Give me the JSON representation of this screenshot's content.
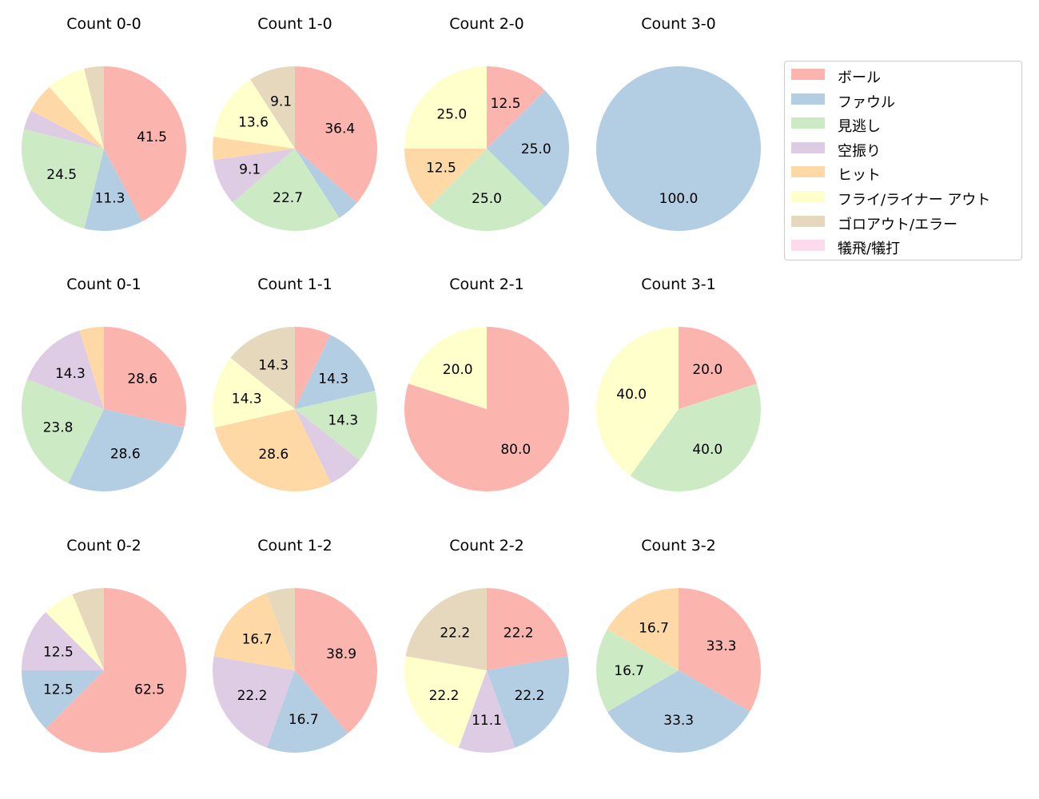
{
  "chart_data": {
    "type": "pie",
    "layout": "small-multiples",
    "colors": [
      "#fbb4ae",
      "#b3cde3",
      "#ccebc5",
      "#decbe4",
      "#fed9a6",
      "#ffffcc",
      "#e5d8bd",
      "#fddaec"
    ],
    "legend": [
      "ボール",
      "ファウル",
      "見逃し",
      "空振り",
      "ヒット",
      "フライ/ライナー アウト",
      "ゴロアウト/エラー",
      "犠飛/犠打"
    ],
    "charts": [
      {
        "title": "Count 0-0",
        "values": [
          41.5,
          11.3,
          24.5,
          3.8,
          5.7,
          7.5,
          3.8,
          0
        ],
        "labels": [
          "41.5",
          "11.3",
          "24.5",
          "",
          "",
          "",
          "",
          ""
        ]
      },
      {
        "title": "Count 1-0",
        "values": [
          36.4,
          4.5,
          22.7,
          9.1,
          4.5,
          13.6,
          9.1,
          0
        ],
        "labels": [
          "36.4",
          "",
          "22.7",
          "9.1",
          "",
          "13.6",
          "9.1",
          ""
        ]
      },
      {
        "title": "Count 2-0",
        "values": [
          12.5,
          25.0,
          25.0,
          0,
          12.5,
          25.0,
          0,
          0
        ],
        "labels": [
          "12.5",
          "25.0",
          "25.0",
          "",
          "12.5",
          "25.0",
          "",
          ""
        ]
      },
      {
        "title": "Count 3-0",
        "values": [
          0,
          100.0,
          0,
          0,
          0,
          0,
          0,
          0
        ],
        "labels": [
          "",
          "100.0",
          "",
          "",
          "",
          "",
          "",
          ""
        ]
      },
      {
        "title": "Count 0-1",
        "values": [
          28.6,
          28.6,
          23.8,
          14.3,
          4.8,
          0,
          0,
          0
        ],
        "labels": [
          "28.6",
          "28.6",
          "23.8",
          "14.3",
          "",
          "",
          "",
          ""
        ]
      },
      {
        "title": "Count 1-1",
        "values": [
          7.1,
          14.3,
          14.3,
          7.1,
          28.6,
          14.3,
          14.3,
          0
        ],
        "labels": [
          "",
          "14.3",
          "14.3",
          "",
          "28.6",
          "14.3",
          "14.3",
          ""
        ]
      },
      {
        "title": "Count 2-1",
        "values": [
          80.0,
          0,
          0,
          0,
          0,
          20.0,
          0,
          0
        ],
        "labels": [
          "80.0",
          "",
          "",
          "",
          "",
          "20.0",
          "",
          ""
        ]
      },
      {
        "title": "Count 3-1",
        "values": [
          20.0,
          0,
          40.0,
          0,
          0,
          40.0,
          0,
          0
        ],
        "labels": [
          "20.0",
          "",
          "40.0",
          "",
          "",
          "40.0",
          "",
          ""
        ]
      },
      {
        "title": "Count 0-2",
        "values": [
          62.5,
          12.5,
          0,
          12.5,
          0,
          6.25,
          6.25,
          0
        ],
        "labels": [
          "62.5",
          "12.5",
          "",
          "12.5",
          "",
          "",
          "",
          ""
        ]
      },
      {
        "title": "Count 1-2",
        "values": [
          38.9,
          16.7,
          0,
          22.2,
          16.7,
          0,
          5.6,
          0
        ],
        "labels": [
          "38.9",
          "16.7",
          "",
          "22.2",
          "16.7",
          "",
          "",
          ""
        ]
      },
      {
        "title": "Count 2-2",
        "values": [
          22.2,
          22.2,
          0,
          11.1,
          0,
          22.2,
          22.2,
          0
        ],
        "labels": [
          "22.2",
          "22.2",
          "",
          "11.1",
          "",
          "22.2",
          "22.2",
          ""
        ]
      },
      {
        "title": "Count 3-2",
        "values": [
          33.3,
          33.3,
          16.7,
          0,
          16.7,
          0,
          0,
          0
        ],
        "labels": [
          "33.3",
          "33.3",
          "16.7",
          "",
          "16.7",
          "",
          "",
          ""
        ]
      }
    ]
  }
}
